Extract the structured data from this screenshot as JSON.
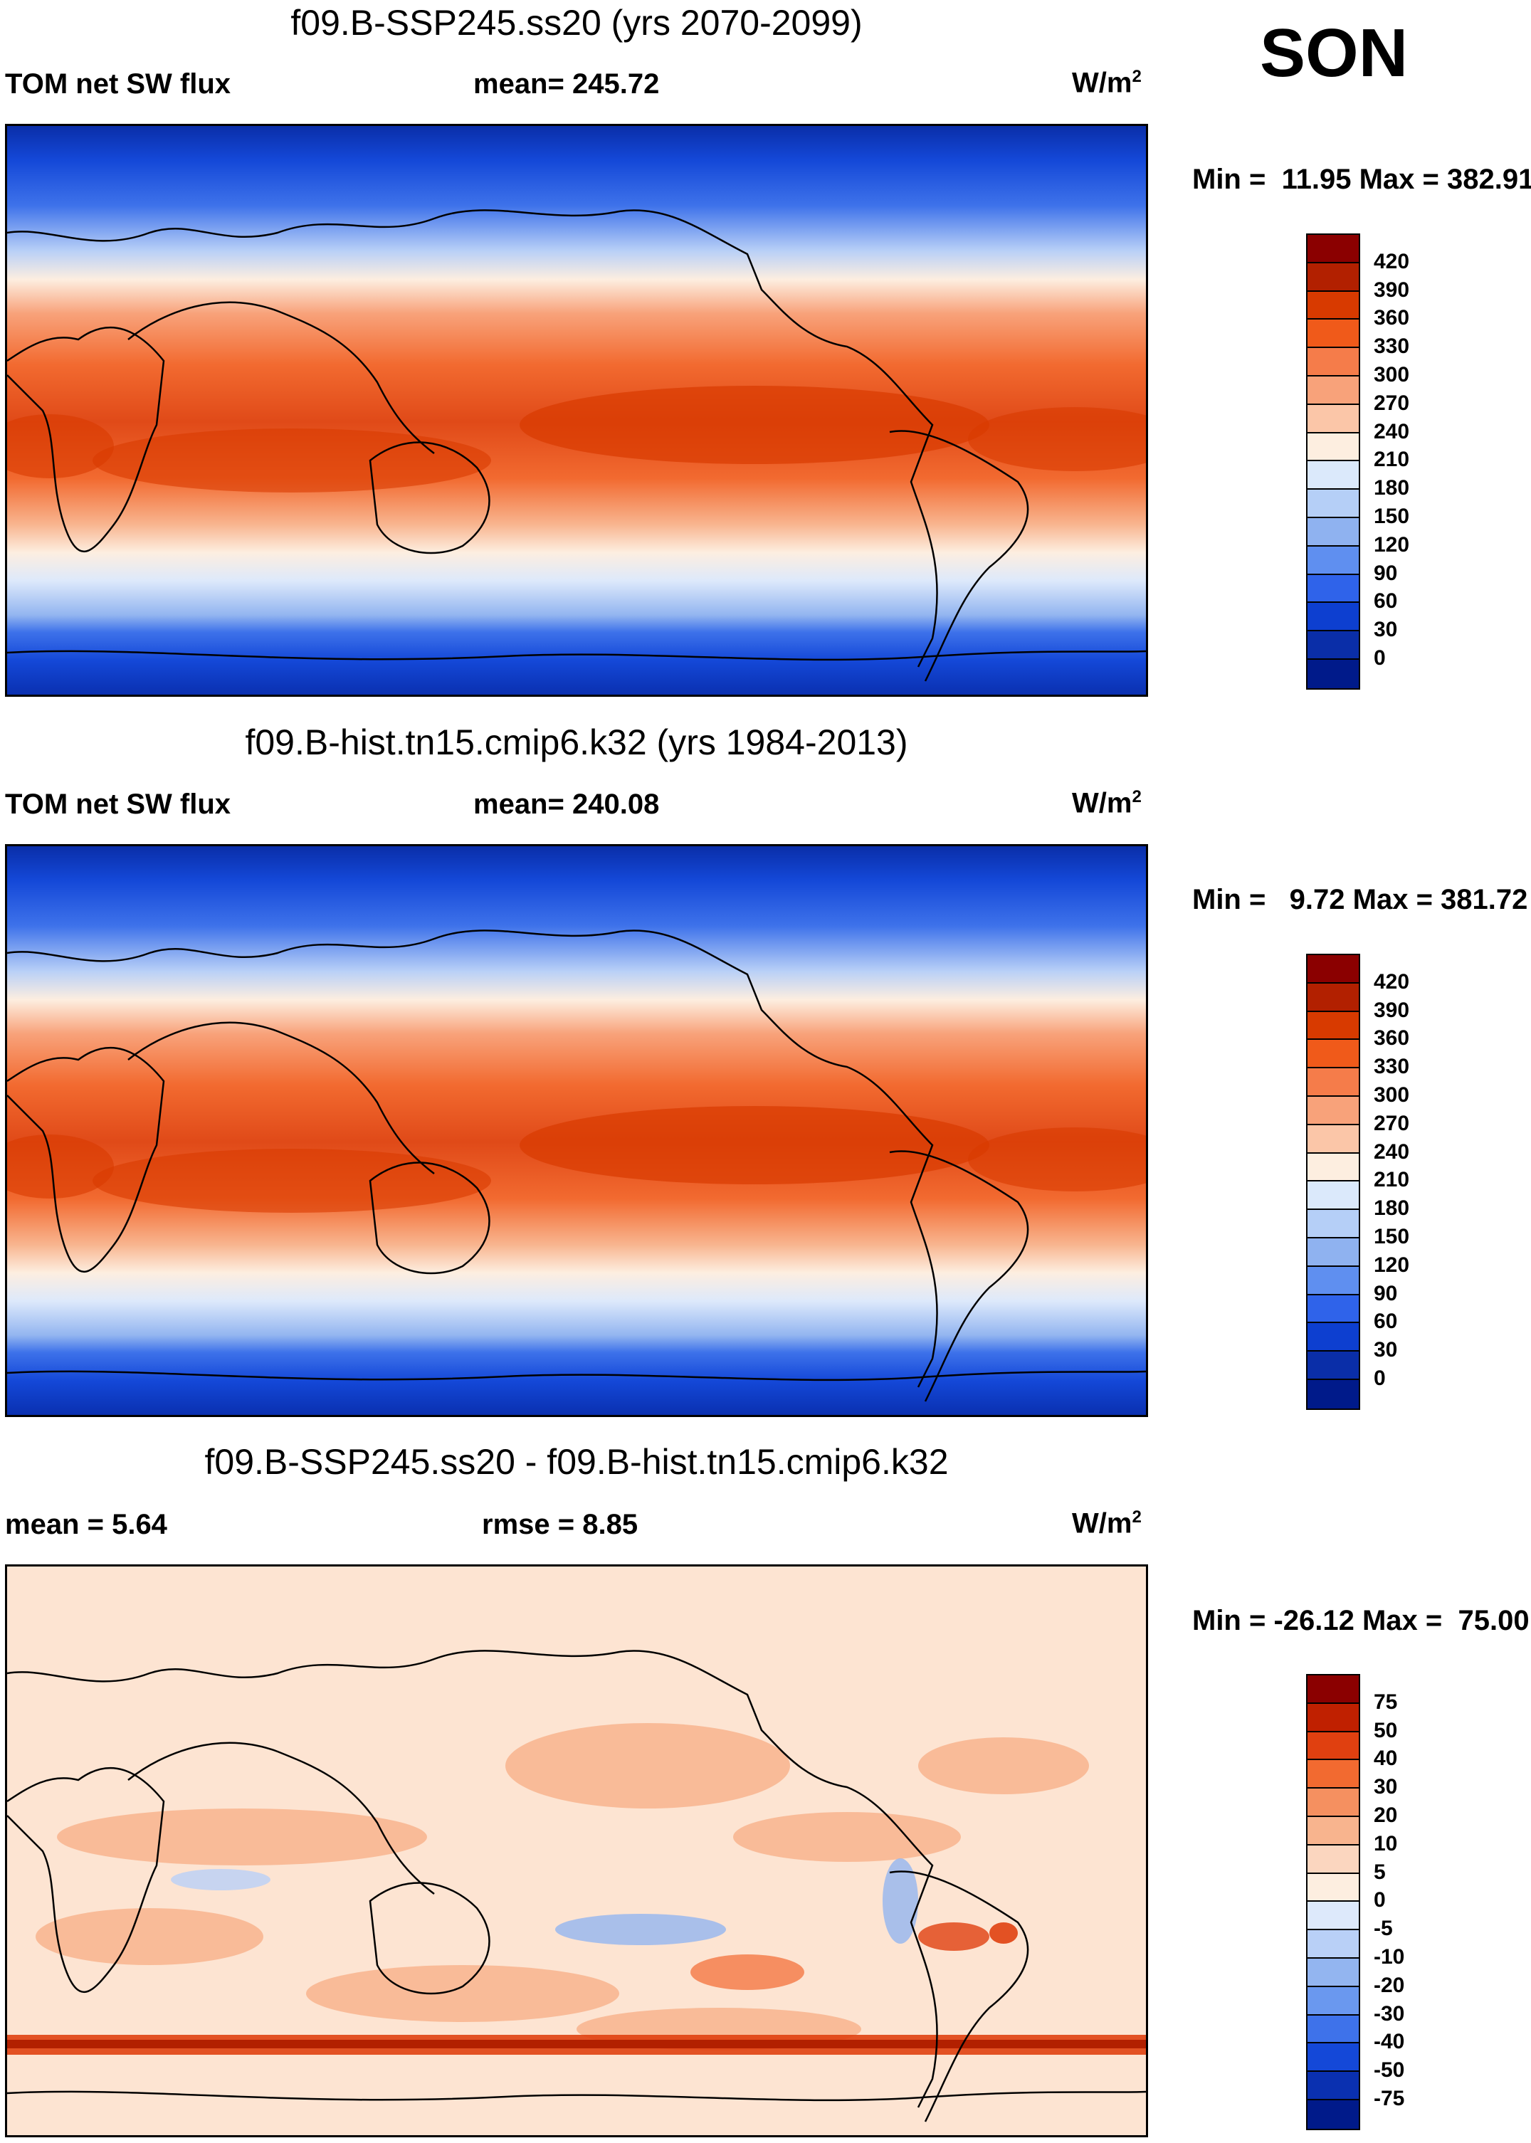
{
  "season": "SON",
  "units_text": "W/m",
  "units_exp": "2",
  "panels": [
    {
      "title": "f09.B-SSP245.ss20 (yrs 2070-2099)",
      "left_label": "TOM net SW flux",
      "center_label": "mean= 245.72",
      "minmax": "Min =  11.95 Max = 382.91",
      "map_type": "absolute",
      "colorbar": {
        "colors": [
          "#8b0000",
          "#b22000",
          "#d83a00",
          "#f05a1a",
          "#f57c4a",
          "#f8a27a",
          "#fbc6a8",
          "#fdeee0",
          "#dbe9fb",
          "#b5cff7",
          "#8fb2f0",
          "#5f8ff0",
          "#2f63ea",
          "#0d3fd0",
          "#0a2ea8",
          "#001a8a"
        ],
        "ticks": [
          "420",
          "390",
          "360",
          "330",
          "300",
          "270",
          "240",
          "210",
          "180",
          "150",
          "120",
          "90",
          "60",
          "30",
          "0"
        ]
      }
    },
    {
      "title": "f09.B-hist.tn15.cmip6.k32 (yrs 1984-2013)",
      "left_label": "TOM net SW flux",
      "center_label": "mean= 240.08",
      "minmax": "Min =   9.72 Max = 381.72",
      "map_type": "absolute",
      "colorbar": {
        "colors": [
          "#8b0000",
          "#b22000",
          "#d83a00",
          "#f05a1a",
          "#f57c4a",
          "#f8a27a",
          "#fbc6a8",
          "#fdeee0",
          "#dbe9fb",
          "#b5cff7",
          "#8fb2f0",
          "#5f8ff0",
          "#2f63ea",
          "#0d3fd0",
          "#0a2ea8",
          "#001a8a"
        ],
        "ticks": [
          "420",
          "390",
          "360",
          "330",
          "300",
          "270",
          "240",
          "210",
          "180",
          "150",
          "120",
          "90",
          "60",
          "30",
          "0"
        ]
      }
    },
    {
      "title": "f09.B-SSP245.ss20 - f09.B-hist.tn15.cmip6.k32",
      "left_label": "mean =   5.64",
      "center_label": "rmse =   8.85",
      "minmax": "Min = -26.12 Max =  75.00",
      "map_type": "difference",
      "colorbar": {
        "colors": [
          "#8b0000",
          "#c02000",
          "#e04010",
          "#f26a30",
          "#f59060",
          "#f8b48e",
          "#fbd6bf",
          "#fdeee0",
          "#dde9fb",
          "#b9d0f7",
          "#93b5f0",
          "#6a98ef",
          "#3e72ea",
          "#1448d8",
          "#0a30b0",
          "#001a8a"
        ],
        "ticks": [
          "75",
          "50",
          "40",
          "30",
          "20",
          "10",
          "5",
          "0",
          "-5",
          "-10",
          "-20",
          "-30",
          "-40",
          "-50",
          "-75"
        ]
      }
    }
  ]
}
